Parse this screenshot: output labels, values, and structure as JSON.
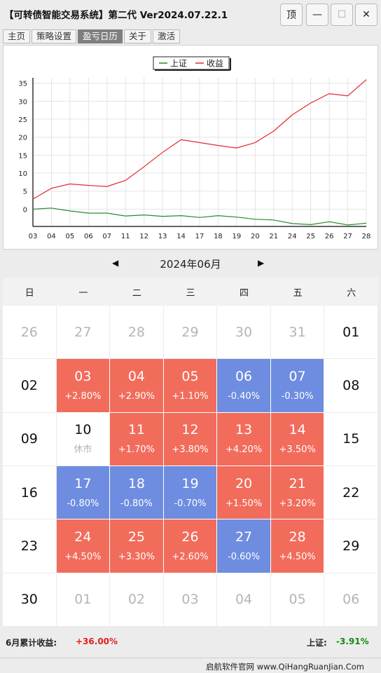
{
  "window": {
    "title": "【可转债智能交易系统】第二代 Ver2024.07.22.1",
    "pin_label": "顶",
    "min_label": "—",
    "max_label": "☐",
    "close_label": "✕"
  },
  "tabs": [
    {
      "label": "主页"
    },
    {
      "label": "策略设置"
    },
    {
      "label": "盈亏日历"
    },
    {
      "label": "关于"
    },
    {
      "label": "激活"
    }
  ],
  "chart_data": {
    "type": "line",
    "categories": [
      "03",
      "04",
      "05",
      "06",
      "07",
      "11",
      "12",
      "13",
      "14",
      "17",
      "18",
      "19",
      "20",
      "21",
      "24",
      "25",
      "26",
      "27",
      "28"
    ],
    "series": [
      {
        "name": "上证",
        "color": "#2a8a2a",
        "values": [
          0,
          0.3,
          -0.5,
          -1.1,
          -1.1,
          -1.9,
          -1.6,
          -2.0,
          -1.8,
          -2.3,
          -1.8,
          -2.2,
          -2.8,
          -3.0,
          -4.0,
          -4.3,
          -3.5,
          -4.4,
          -3.9
        ]
      },
      {
        "name": "收益",
        "color": "#e8272f",
        "values": [
          2.8,
          5.8,
          7.0,
          6.6,
          6.3,
          8.0,
          11.8,
          15.8,
          19.3,
          18.5,
          17.7,
          17.0,
          18.5,
          21.7,
          26.2,
          29.5,
          32.1,
          31.5,
          36.0
        ]
      }
    ],
    "yticks": [
      "35",
      "30",
      "25",
      "20",
      "15",
      "10",
      "5",
      "0"
    ],
    "ylim": [
      -4.8,
      36.5
    ],
    "grid": true,
    "legend_position": "top-center"
  },
  "month_nav": {
    "prev": "◀",
    "label": "2024年06月",
    "next": "▶"
  },
  "weekdays": [
    "日",
    "一",
    "二",
    "三",
    "四",
    "五",
    "六"
  ],
  "calendar": [
    {
      "day": "26",
      "pct": "",
      "state": "other"
    },
    {
      "day": "27",
      "pct": "",
      "state": "other"
    },
    {
      "day": "28",
      "pct": "",
      "state": "other"
    },
    {
      "day": "29",
      "pct": "",
      "state": "other"
    },
    {
      "day": "30",
      "pct": "",
      "state": "other"
    },
    {
      "day": "31",
      "pct": "",
      "state": "other"
    },
    {
      "day": "01",
      "pct": "",
      "state": "empty"
    },
    {
      "day": "02",
      "pct": "",
      "state": "empty"
    },
    {
      "day": "03",
      "pct": "+2.80%",
      "state": "up"
    },
    {
      "day": "04",
      "pct": "+2.90%",
      "state": "up"
    },
    {
      "day": "05",
      "pct": "+1.10%",
      "state": "up"
    },
    {
      "day": "06",
      "pct": "-0.40%",
      "state": "down"
    },
    {
      "day": "07",
      "pct": "-0.30%",
      "state": "down"
    },
    {
      "day": "08",
      "pct": "",
      "state": "empty"
    },
    {
      "day": "09",
      "pct": "",
      "state": "empty"
    },
    {
      "day": "10",
      "pct": "休市",
      "state": "closed"
    },
    {
      "day": "11",
      "pct": "+1.70%",
      "state": "up"
    },
    {
      "day": "12",
      "pct": "+3.80%",
      "state": "up"
    },
    {
      "day": "13",
      "pct": "+4.20%",
      "state": "up"
    },
    {
      "day": "14",
      "pct": "+3.50%",
      "state": "up"
    },
    {
      "day": "15",
      "pct": "",
      "state": "empty"
    },
    {
      "day": "16",
      "pct": "",
      "state": "empty"
    },
    {
      "day": "17",
      "pct": "-0.80%",
      "state": "down"
    },
    {
      "day": "18",
      "pct": "-0.80%",
      "state": "down"
    },
    {
      "day": "19",
      "pct": "-0.70%",
      "state": "down"
    },
    {
      "day": "20",
      "pct": "+1.50%",
      "state": "up"
    },
    {
      "day": "21",
      "pct": "+3.20%",
      "state": "up"
    },
    {
      "day": "22",
      "pct": "",
      "state": "empty"
    },
    {
      "day": "23",
      "pct": "",
      "state": "empty"
    },
    {
      "day": "24",
      "pct": "+4.50%",
      "state": "up"
    },
    {
      "day": "25",
      "pct": "+3.30%",
      "state": "up"
    },
    {
      "day": "26",
      "pct": "+2.60%",
      "state": "up"
    },
    {
      "day": "27",
      "pct": "-0.60%",
      "state": "down"
    },
    {
      "day": "28",
      "pct": "+4.50%",
      "state": "up"
    },
    {
      "day": "29",
      "pct": "",
      "state": "empty"
    },
    {
      "day": "30",
      "pct": "",
      "state": "empty"
    },
    {
      "day": "01",
      "pct": "",
      "state": "other"
    },
    {
      "day": "02",
      "pct": "",
      "state": "other"
    },
    {
      "day": "03",
      "pct": "",
      "state": "other"
    },
    {
      "day": "04",
      "pct": "",
      "state": "other"
    },
    {
      "day": "05",
      "pct": "",
      "state": "other"
    },
    {
      "day": "06",
      "pct": "",
      "state": "other"
    }
  ],
  "summary": {
    "label": "6月累计收益:",
    "value": "+36.00%",
    "index_label": "上证:",
    "index_value": "-3.91%"
  },
  "footer": {
    "text": "启航软件官网  www.QiHangRuanJian.Com"
  },
  "colors": {
    "up": "#f26c5c",
    "down": "#6e8de0",
    "profit_line": "#e8272f",
    "index_line": "#2a8a2a",
    "positive_text": "#e02020",
    "negative_text": "#128a12"
  }
}
